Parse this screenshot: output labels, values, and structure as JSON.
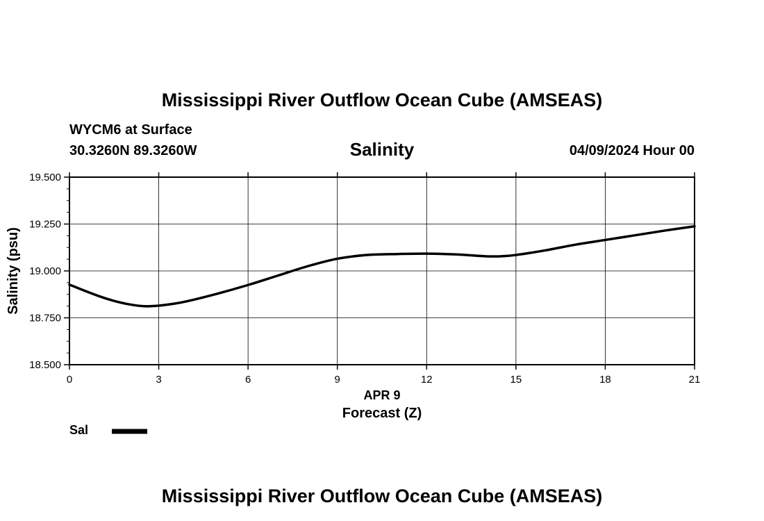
{
  "page": {
    "title": "Mississippi River Outflow Ocean Cube (AMSEAS)",
    "title_bottom": "Mississippi River Outflow Ocean Cube (AMSEAS)",
    "station": "WYCM6 at Surface",
    "coords": "30.3260N  89.3260W",
    "parameter": "Salinity",
    "datetime": "04/09/2024 Hour 00"
  },
  "chart_data": {
    "type": "line",
    "title": "Salinity",
    "xlabel": "Forecast (Z)",
    "xlabel_date": "APR 9",
    "ylabel": "Salinity (psu)",
    "xlim": [
      0,
      21
    ],
    "ylim": [
      18.5,
      19.5
    ],
    "x_ticks": [
      0,
      3,
      6,
      9,
      12,
      15,
      18,
      21
    ],
    "x_tick_labels": [
      "0",
      "3",
      "6",
      "9",
      "12",
      "15",
      "18",
      "21"
    ],
    "y_ticks": [
      18.5,
      18.75,
      19.0,
      19.25,
      19.5
    ],
    "y_tick_labels": [
      "18.500",
      "18.750",
      "19.000",
      "19.250",
      "19.500"
    ],
    "grid": true,
    "legend_placement": "bottom-left",
    "series": [
      {
        "name": "Sal",
        "color": "#000000",
        "x": [
          0,
          0.5,
          1,
          1.5,
          2,
          2.5,
          3,
          3.5,
          4,
          5,
          6,
          7,
          8,
          9,
          10,
          11,
          12,
          13,
          14,
          14.5,
          15,
          16,
          17,
          18,
          19,
          20,
          21
        ],
        "y": [
          18.927,
          18.895,
          18.865,
          18.84,
          18.822,
          18.812,
          18.815,
          18.825,
          18.84,
          18.88,
          18.925,
          18.975,
          19.025,
          19.065,
          19.085,
          19.09,
          19.092,
          19.088,
          19.078,
          19.078,
          19.085,
          19.11,
          19.14,
          19.165,
          19.19,
          19.215,
          19.238
        ]
      }
    ]
  }
}
